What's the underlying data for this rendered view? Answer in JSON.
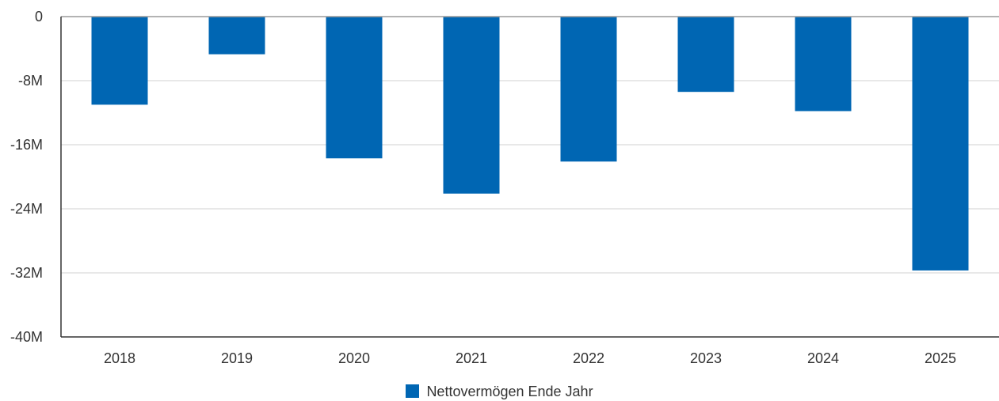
{
  "chart_data": {
    "type": "bar",
    "categories": [
      "2018",
      "2019",
      "2020",
      "2021",
      "2022",
      "2023",
      "2024",
      "2025"
    ],
    "series": [
      {
        "name": "Nettovermögen Ende Jahr",
        "values": [
          -11.0,
          -4.7,
          -17.7,
          -22.1,
          -18.1,
          -9.4,
          -11.8,
          -31.7
        ],
        "color": "#0066b3"
      }
    ],
    "ylim": [
      -40,
      0
    ],
    "yticks": [
      0,
      -8,
      -16,
      -24,
      -32,
      -40
    ],
    "ytick_labels": [
      "0",
      "-8M",
      "-16M",
      "-24M",
      "-32M",
      "-40M"
    ],
    "grid": true,
    "legend_position": "bottom-center"
  }
}
